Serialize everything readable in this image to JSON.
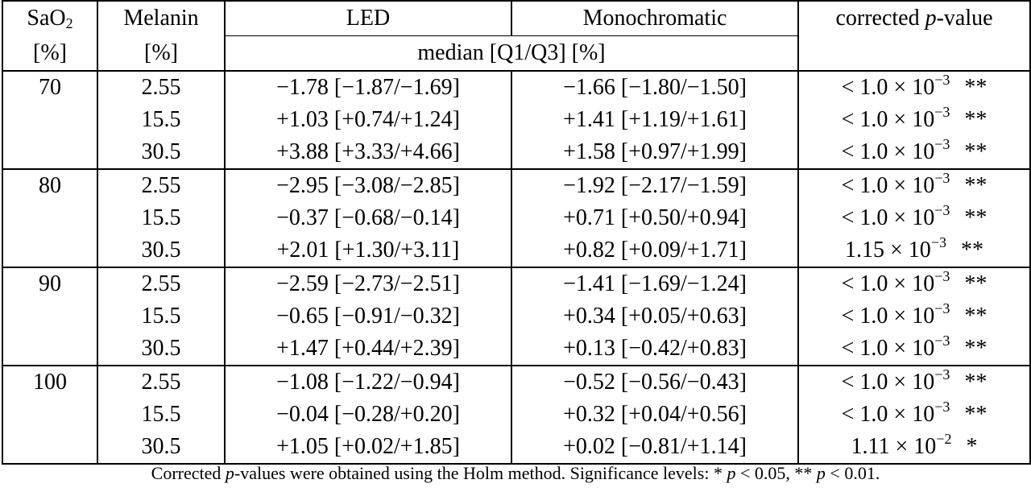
{
  "table": {
    "header": {
      "sao2_top": "SaO",
      "sao2_sub": "2",
      "sao2_unit": "[%]",
      "melanin": "Melanin",
      "melanin_unit": "[%]",
      "led": "LED",
      "mono": "Monochromatic",
      "pvalue_prefix": "corrected ",
      "pvalue_var": "p",
      "pvalue_suffix": "-value",
      "median_label": "median [Q1/Q3] [%]"
    },
    "groups": [
      {
        "sao2": "70",
        "rows": [
          {
            "melanin": "2.55",
            "led": "−1.78 [−1.87/−1.69]",
            "led_bold": false,
            "mono": "−1.66 [−1.80/−1.50]",
            "mono_bold": true,
            "p_prefix": "< 1.0 × 10",
            "p_exp": "−3",
            "stars": "**"
          },
          {
            "melanin": "15.5",
            "led": "+1.03 [+0.74/+1.24]",
            "led_bold": true,
            "mono": "+1.41 [+1.19/+1.61]",
            "mono_bold": false,
            "p_prefix": "< 1.0 × 10",
            "p_exp": "−3",
            "stars": "**"
          },
          {
            "melanin": "30.5",
            "led": "+3.88 [+3.33/+4.66]",
            "led_bold": false,
            "mono": "+1.58 [+0.97/+1.99]",
            "mono_bold": true,
            "p_prefix": "< 1.0 × 10",
            "p_exp": "−3",
            "stars": "**"
          }
        ]
      },
      {
        "sao2": "80",
        "rows": [
          {
            "melanin": "2.55",
            "led": "−2.95 [−3.08/−2.85]",
            "led_bold": false,
            "mono": "−1.92 [−2.17/−1.59]",
            "mono_bold": true,
            "p_prefix": "< 1.0 × 10",
            "p_exp": "−3",
            "stars": "**"
          },
          {
            "melanin": "15.5",
            "led": "−0.37 [−0.68/−0.14]",
            "led_bold": true,
            "mono": "+0.71 [+0.50/+0.94]",
            "mono_bold": false,
            "p_prefix": "< 1.0 × 10",
            "p_exp": "−3",
            "stars": "**"
          },
          {
            "melanin": "30.5",
            "led": "+2.01 [+1.30/+3.11]",
            "led_bold": false,
            "mono": "+0.82 [+0.09/+1.71]",
            "mono_bold": true,
            "p_prefix": "1.15 × 10",
            "p_exp": "−3",
            "stars": "**"
          }
        ]
      },
      {
        "sao2": "90",
        "rows": [
          {
            "melanin": "2.55",
            "led": "−2.59 [−2.73/−2.51]",
            "led_bold": false,
            "mono": "−1.41 [−1.69/−1.24]",
            "mono_bold": true,
            "p_prefix": "< 1.0 × 10",
            "p_exp": "−3",
            "stars": "**"
          },
          {
            "melanin": "15.5",
            "led": "−0.65 [−0.91/−0.32]",
            "led_bold": false,
            "mono": "+0.34 [+0.05/+0.63]",
            "mono_bold": true,
            "p_prefix": "< 1.0 × 10",
            "p_exp": "−3",
            "stars": "**"
          },
          {
            "melanin": "30.5",
            "led": "+1.47 [+0.44/+2.39]",
            "led_bold": false,
            "mono": "+0.13 [−0.42/+0.83]",
            "mono_bold": true,
            "p_prefix": "< 1.0 × 10",
            "p_exp": "−3",
            "stars": "**"
          }
        ]
      },
      {
        "sao2": "100",
        "rows": [
          {
            "melanin": "2.55",
            "led": "−1.08 [−1.22/−0.94]",
            "led_bold": false,
            "mono": "−0.52 [−0.56/−0.43]",
            "mono_bold": true,
            "p_prefix": "< 1.0 × 10",
            "p_exp": "−3",
            "stars": "**"
          },
          {
            "melanin": "15.5",
            "led": "−0.04 [−0.28/+0.20]",
            "led_bold": true,
            "mono": "+0.32 [+0.04/+0.56]",
            "mono_bold": false,
            "p_prefix": "< 1.0 × 10",
            "p_exp": "−3",
            "stars": "**"
          },
          {
            "melanin": "30.5",
            "led": "+1.05 [+0.02/+1.85]",
            "led_bold": false,
            "mono": "+0.02 [−0.81/+1.14]",
            "mono_bold": true,
            "p_prefix": "1.11 × 10",
            "p_exp": "−2",
            "stars": "*"
          }
        ]
      }
    ]
  },
  "caption": {
    "part1": "Corrected ",
    "p_var": "p",
    "part2": "-values were obtained using the Holm method. Significance levels: ",
    "sig1_stars": "*",
    "sig1_var": "p",
    "sig1_rest": " < 0.05,  ",
    "sig2_stars": "**",
    "sig2_var": "p",
    "sig2_rest": " < 0.01."
  }
}
